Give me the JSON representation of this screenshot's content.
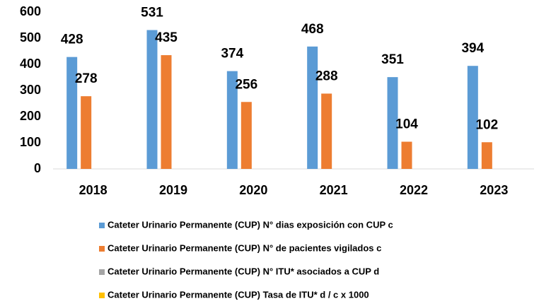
{
  "chart_data": {
    "type": "bar",
    "categories": [
      "2018",
      "2019",
      "2020",
      "2021",
      "2022",
      "2023"
    ],
    "series": [
      {
        "name": "Cateter Urinario Permanente (CUP) N° dias exposición con CUP c",
        "color": "#5b9bd5",
        "values": [
          428,
          531,
          374,
          468,
          351,
          394
        ],
        "labels": true
      },
      {
        "name": "Cateter Urinario Permanente (CUP) N° de pacientes vigilados c",
        "color": "#ed7d31",
        "values": [
          278,
          435,
          256,
          288,
          104,
          102
        ],
        "labels": true
      },
      {
        "name": "Cateter Urinario Permanente (CUP) N° ITU* asociados a CUP d",
        "color": "#a5a5a5",
        "values": [
          0,
          0,
          0,
          0,
          0,
          0
        ],
        "labels": false
      },
      {
        "name": "Cateter Urinario Permanente (CUP) Tasa de ITU*  d / c x 1000",
        "color": "#ffc000",
        "values": [
          0,
          0,
          0,
          0,
          0,
          0
        ],
        "labels": false
      }
    ],
    "ylim": [
      0,
      600
    ],
    "yticks": [
      0,
      100,
      200,
      300,
      400,
      500,
      600
    ],
    "grid": false
  }
}
